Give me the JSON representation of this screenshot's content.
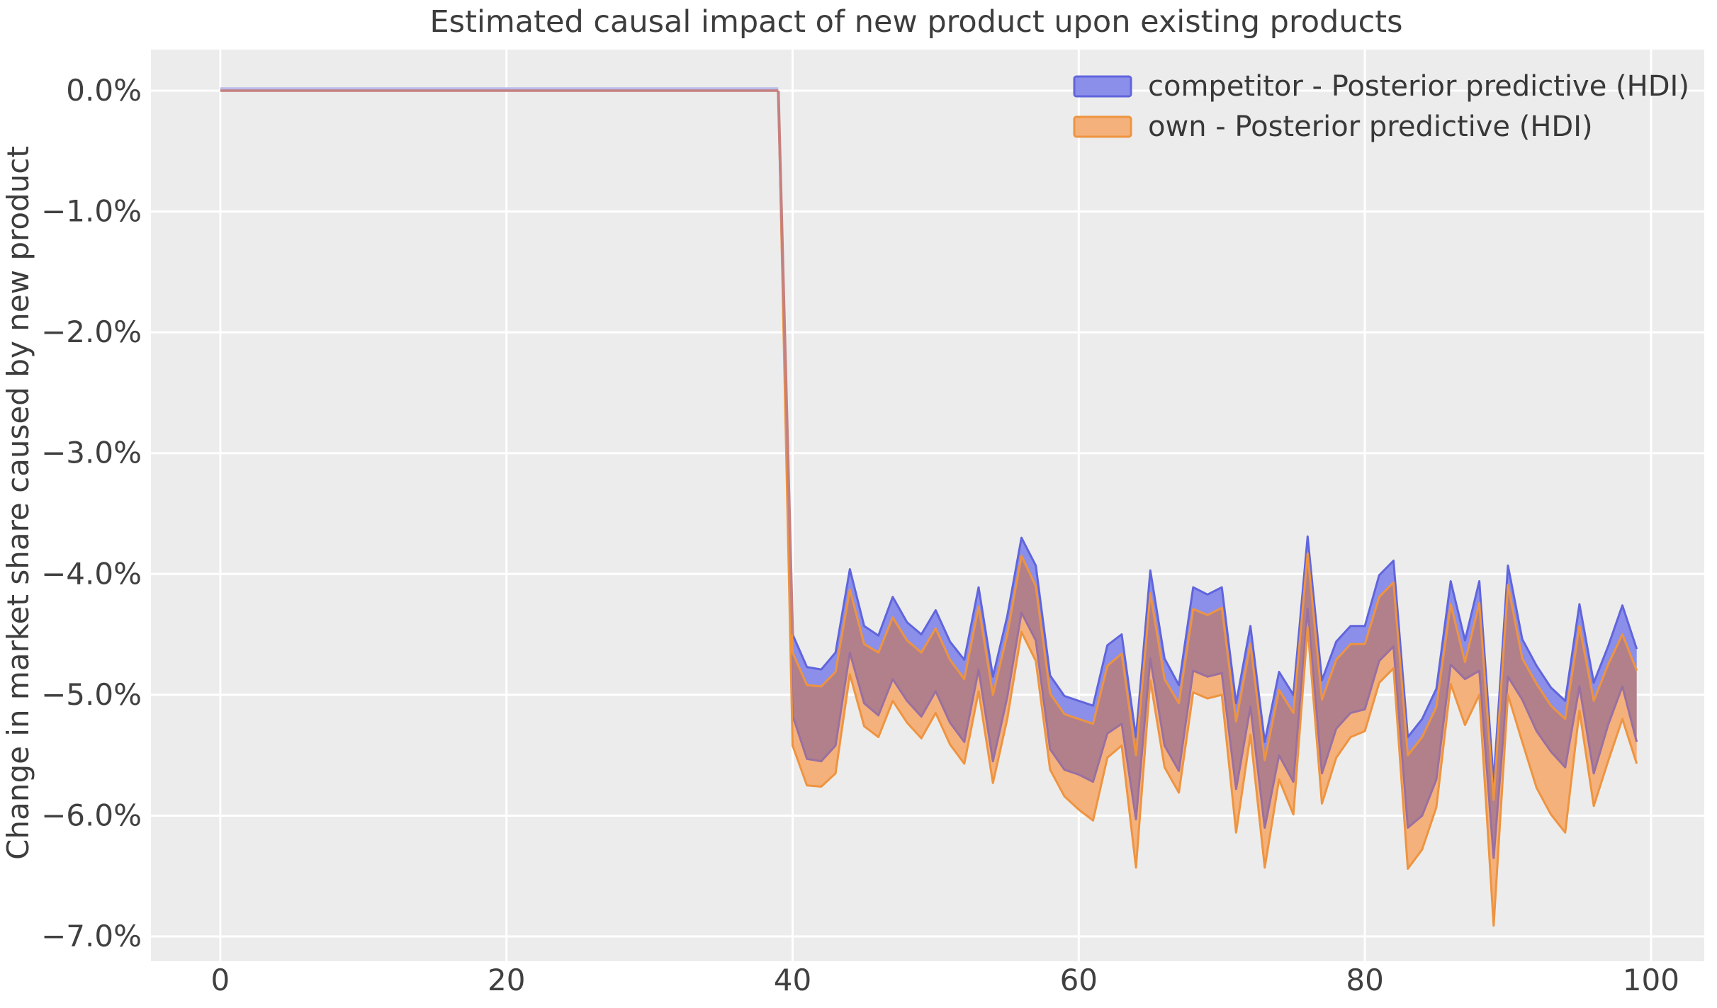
{
  "colors": {
    "figure_background": "#ffffff",
    "axes_background": "#ececec",
    "grid": "#ffffff",
    "competitor_fill": "#8b8fe9",
    "competitor_edge": "#6065dd",
    "competitor_lower_edge": "#9a70a0",
    "own_fill": "#f4b17c",
    "own_edge": "#ee9440",
    "overlap_fill": "#b2808a",
    "pre_period_line": "#c5807f",
    "pre_period_line_secondary": "#b8bbea",
    "text": "#3d3d3d"
  },
  "chart_data": {
    "type": "area",
    "title": "Estimated causal impact of new product upon existing products",
    "xlabel": "",
    "ylabel": "Change in market share caused by new product",
    "xlim": [
      -4.85,
      103.72
    ],
    "ylim": [
      0.34,
      -7.205
    ],
    "grid": true,
    "legend_position": "upper right",
    "xticks": [
      0,
      20,
      40,
      60,
      80,
      100
    ],
    "xtick_labels": [
      "0",
      "20",
      "40",
      "60",
      "80",
      "100"
    ],
    "yticks": [
      0,
      -1,
      -2,
      -3,
      -4,
      -5,
      -6,
      -7
    ],
    "ytick_labels": [
      "0.0%",
      "−1.0%",
      "−2.0%",
      "−3.0%",
      "−4.0%",
      "−5.0%",
      "−6.0%",
      "−7.0%"
    ],
    "pre_period": {
      "x_start": 0,
      "x_end": 39,
      "value_pct": 0
    },
    "treatment_x": 40,
    "x_post": [
      40,
      41,
      42,
      43,
      44,
      45,
      46,
      47,
      48,
      49,
      50,
      51,
      52,
      53,
      54,
      55,
      56,
      57,
      58,
      59,
      60,
      61,
      62,
      63,
      64,
      65,
      66,
      67,
      68,
      69,
      70,
      71,
      72,
      73,
      74,
      75,
      76,
      77,
      78,
      79,
      80,
      81,
      82,
      83,
      84,
      85,
      86,
      87,
      88,
      89,
      90,
      91,
      92,
      93,
      94,
      95,
      96,
      97,
      98,
      99
    ],
    "series": [
      {
        "name": "competitor - Posterior predictive (HDI)",
        "band": "HDI",
        "upper_pct": [
          -4.5,
          -4.77,
          -4.79,
          -4.65,
          -3.96,
          -4.43,
          -4.51,
          -4.19,
          -4.4,
          -4.5,
          -4.3,
          -4.56,
          -4.71,
          -4.11,
          -4.85,
          -4.35,
          -3.7,
          -3.93,
          -4.84,
          -5.01,
          -5.05,
          -5.09,
          -4.59,
          -4.5,
          -5.35,
          -3.97,
          -4.7,
          -4.92,
          -4.11,
          -4.17,
          -4.11,
          -5.07,
          -4.43,
          -5.39,
          -4.81,
          -5.0,
          -3.69,
          -4.88,
          -4.56,
          -4.43,
          -4.43,
          -4.01,
          -3.89,
          -5.35,
          -5.2,
          -4.95,
          -4.06,
          -4.55,
          -4.06,
          -5.72,
          -3.93,
          -4.54,
          -4.76,
          -4.94,
          -5.05,
          -4.25,
          -4.9,
          -4.6,
          -4.26,
          -4.62
        ],
        "lower_pct": [
          -5.17,
          -5.53,
          -5.55,
          -5.42,
          -4.65,
          -5.07,
          -5.17,
          -4.87,
          -5.05,
          -5.18,
          -4.97,
          -5.23,
          -5.39,
          -4.79,
          -5.55,
          -5.02,
          -4.32,
          -4.55,
          -5.45,
          -5.62,
          -5.66,
          -5.72,
          -5.32,
          -5.24,
          -6.03,
          -4.7,
          -5.42,
          -5.63,
          -4.8,
          -4.85,
          -4.82,
          -5.78,
          -5.1,
          -6.1,
          -5.5,
          -5.72,
          -4.29,
          -5.65,
          -5.28,
          -5.15,
          -5.12,
          -4.72,
          -4.6,
          -6.1,
          -6.0,
          -5.7,
          -4.75,
          -4.87,
          -4.8,
          -6.35,
          -4.85,
          -5.04,
          -5.3,
          -5.47,
          -5.6,
          -4.93,
          -5.65,
          -5.25,
          -4.93,
          -5.39
        ]
      },
      {
        "name": "own - Posterior predictive (HDI)",
        "band": "HDI",
        "upper_pct": [
          -4.65,
          -4.92,
          -4.93,
          -4.81,
          -4.13,
          -4.58,
          -4.65,
          -4.36,
          -4.55,
          -4.65,
          -4.45,
          -4.71,
          -4.87,
          -4.27,
          -5.0,
          -4.5,
          -3.85,
          -4.1,
          -4.99,
          -5.16,
          -5.2,
          -5.24,
          -4.76,
          -4.66,
          -5.5,
          -4.16,
          -4.87,
          -5.07,
          -4.29,
          -4.34,
          -4.28,
          -5.22,
          -4.58,
          -5.54,
          -4.96,
          -5.15,
          -3.83,
          -5.04,
          -4.71,
          -4.58,
          -4.58,
          -4.19,
          -4.07,
          -5.5,
          -5.35,
          -5.1,
          -4.25,
          -4.73,
          -4.24,
          -5.87,
          -4.09,
          -4.7,
          -4.91,
          -5.09,
          -5.2,
          -4.43,
          -5.05,
          -4.75,
          -4.5,
          -4.8
        ],
        "lower_pct": [
          -5.42,
          -5.75,
          -5.76,
          -5.65,
          -4.83,
          -5.26,
          -5.35,
          -5.05,
          -5.23,
          -5.36,
          -5.15,
          -5.41,
          -5.57,
          -4.97,
          -5.73,
          -5.2,
          -4.48,
          -4.72,
          -5.62,
          -5.84,
          -5.95,
          -6.04,
          -5.52,
          -5.42,
          -6.43,
          -4.88,
          -5.6,
          -5.81,
          -4.98,
          -5.03,
          -5.0,
          -6.14,
          -5.33,
          -6.43,
          -5.7,
          -5.99,
          -4.44,
          -5.9,
          -5.52,
          -5.35,
          -5.3,
          -4.9,
          -4.78,
          -6.44,
          -6.28,
          -5.93,
          -4.91,
          -5.25,
          -5.0,
          -6.91,
          -5.0,
          -5.39,
          -5.77,
          -5.99,
          -6.14,
          -5.13,
          -5.92,
          -5.55,
          -5.2,
          -5.57
        ]
      }
    ]
  }
}
